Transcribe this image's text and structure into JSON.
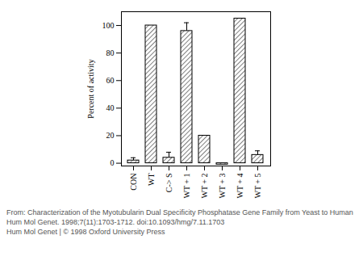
{
  "chart_data": {
    "type": "bar",
    "categories": [
      "CON",
      "WT",
      "C-> S",
      "WT + 1",
      "WT + 2",
      "WT + 3",
      "WT + 4",
      "WT + 5"
    ],
    "values": [
      2,
      100,
      4,
      96,
      20,
      -1,
      105,
      6
    ],
    "errors": [
      2,
      null,
      4,
      6,
      null,
      null,
      null,
      3
    ],
    "y_label": "Percent of activity",
    "ylim": [
      -2,
      110
    ],
    "yticks": [
      0,
      20,
      40,
      60,
      80,
      100
    ],
    "color": "#000000",
    "grid": false,
    "caption": [
      "From: Characterization of the Myotubularin Dual Specificity Phosphatase Gene Family from Yeast to Human",
      "Hum Mol Genet. 1998;7(11):1703-1712. doi:10.1093/hmg/7.11.1703",
      "Hum Mol Genet | © 1998 Oxford University Press"
    ]
  }
}
